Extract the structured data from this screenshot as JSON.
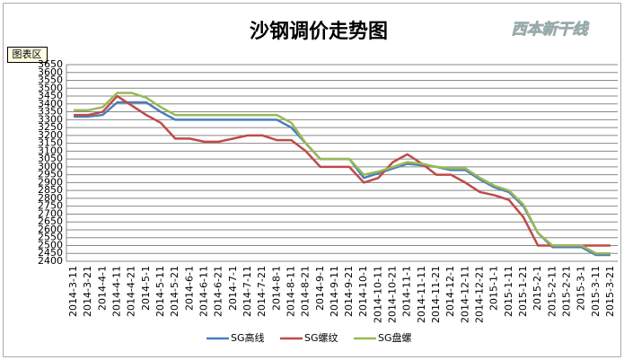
{
  "chart_data": {
    "type": "line",
    "title": "沙钢调价走势图",
    "watermark": "西本新干线",
    "tooltip": "图表区",
    "categories": [
      "2014-3-11",
      "2014-3-21",
      "2014-4-1",
      "2014-4-11",
      "2014-4-21",
      "2014-5-1",
      "2014-5-11",
      "2014-5-21",
      "2014-6-1",
      "2014-6-11",
      "2014-6-21",
      "2014-7-1",
      "2014-7-11",
      "2014-7-21",
      "2014-8-1",
      "2014-8-11",
      "2014-8-21",
      "2014-9-1",
      "2014-9-11",
      "2014-9-21",
      "2014-10-1",
      "2014-10-11",
      "2014-10-21",
      "2014-11-1",
      "2014-11-11",
      "2014-11-21",
      "2014-12-1",
      "2014-12-11",
      "2014-12-21",
      "2015-1-1",
      "2015-1-11",
      "2015-1-21",
      "2015-2-1",
      "2015-2-11",
      "2015-2-21",
      "2015-3-1",
      "2015-3-11",
      "2015-3-21"
    ],
    "series": [
      {
        "name": "SG高线",
        "color": "#4a7ebb",
        "values": [
          3320,
          3320,
          3330,
          3410,
          3410,
          3410,
          3350,
          3300,
          3300,
          3300,
          3300,
          3300,
          3300,
          3300,
          3300,
          3250,
          3150,
          3050,
          3050,
          3050,
          2930,
          2960,
          2990,
          3020,
          3010,
          3000,
          2980,
          2980,
          2920,
          2870,
          2840,
          2750,
          2580,
          2490,
          2490,
          2490,
          2440,
          2440
        ]
      },
      {
        "name": "SG螺纹",
        "color": "#be4b48",
        "values": [
          3330,
          3330,
          3350,
          3450,
          3390,
          3330,
          3280,
          3180,
          3180,
          3160,
          3160,
          3180,
          3200,
          3200,
          3170,
          3170,
          3100,
          3000,
          3000,
          3000,
          2900,
          2930,
          3030,
          3080,
          3020,
          2950,
          2950,
          2900,
          2840,
          2820,
          2790,
          2680,
          2500,
          2500,
          2500,
          2500,
          2500,
          2500
        ]
      },
      {
        "name": "SG盘螺",
        "color": "#98b954",
        "values": [
          3360,
          3360,
          3380,
          3470,
          3470,
          3440,
          3380,
          3330,
          3330,
          3330,
          3330,
          3330,
          3330,
          3330,
          3330,
          3280,
          3150,
          3050,
          3050,
          3050,
          2950,
          2970,
          3000,
          3030,
          3020,
          3000,
          2990,
          2990,
          2930,
          2880,
          2850,
          2760,
          2580,
          2500,
          2500,
          2500,
          2450,
          2450
        ]
      }
    ],
    "ylim": [
      2400,
      3650
    ],
    "yticks": [
      2400,
      2450,
      2500,
      2550,
      2600,
      2650,
      2700,
      2750,
      2800,
      2850,
      2900,
      2950,
      3000,
      3050,
      3100,
      3150,
      3200,
      3250,
      3300,
      3350,
      3400,
      3450,
      3500,
      3550,
      3600,
      3650
    ],
    "grid": true,
    "legend": "bottom"
  }
}
